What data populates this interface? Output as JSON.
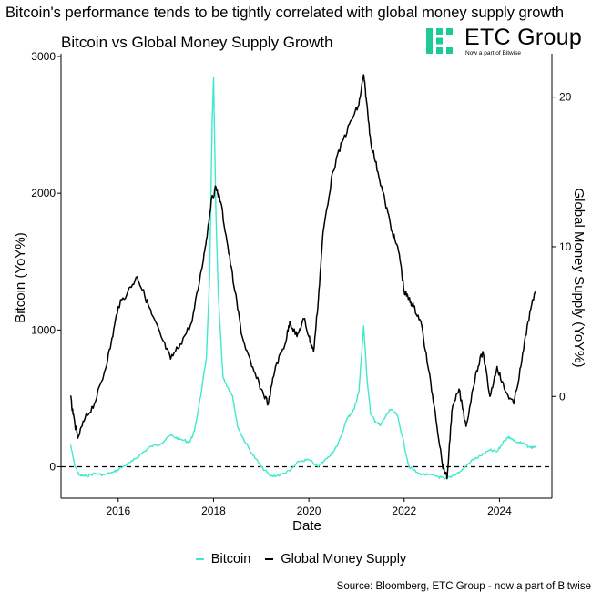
{
  "headline": "Bitcoin's performance tends to be tightly correlated with global money supply growth",
  "brand": {
    "name": "ETC Group",
    "tagline": "Now a part of Bitwise",
    "color": "#1ec99a"
  },
  "source": "Source: Bloomberg, ETC Group - now a part of Bitwise",
  "chart_data": {
    "type": "line",
    "title": "Bitcoin vs Global Money Supply Growth",
    "xlabel": "Date",
    "ylabel_left": "Bitcoin (YoY%)",
    "ylabel_right": "Global Money Supply (YoY%)",
    "x_ticks": [
      "2016",
      "2018",
      "2020",
      "2022",
      "2024"
    ],
    "x_range": [
      2014.8,
      2025.1
    ],
    "y_left_ticks": [
      0,
      1000,
      2000,
      3000
    ],
    "y_left_range": [
      -230,
      3020
    ],
    "y_right_ticks": [
      0,
      10,
      20
    ],
    "y_right_range": [
      -6.8,
      22.9
    ],
    "reference_line": {
      "axis": "left",
      "value": 0,
      "style": "dashed"
    },
    "grid": false,
    "legend_position": "bottom",
    "series": [
      {
        "name": "Bitcoin",
        "axis": "left",
        "color": "#40e8cc",
        "x": [
          2015.0,
          2015.08,
          2015.17,
          2015.3,
          2015.5,
          2015.7,
          2015.9,
          2016.1,
          2016.3,
          2016.5,
          2016.7,
          2016.9,
          2017.1,
          2017.3,
          2017.5,
          2017.6,
          2017.75,
          2017.85,
          2017.92,
          2017.97,
          2018.0,
          2018.05,
          2018.1,
          2018.2,
          2018.3,
          2018.4,
          2018.5,
          2018.6,
          2018.8,
          2019.0,
          2019.2,
          2019.4,
          2019.6,
          2019.8,
          2020.0,
          2020.2,
          2020.4,
          2020.6,
          2020.8,
          2020.95,
          2021.05,
          2021.15,
          2021.22,
          2021.3,
          2021.4,
          2021.5,
          2021.7,
          2021.85,
          2021.95,
          2022.1,
          2022.3,
          2022.5,
          2022.7,
          2022.85,
          2023.0,
          2023.2,
          2023.4,
          2023.6,
          2023.8,
          2023.95,
          2024.1,
          2024.2,
          2024.35,
          2024.5,
          2024.65,
          2024.75
        ],
        "values": [
          160,
          20,
          -60,
          -70,
          -50,
          -60,
          -40,
          0,
          40,
          100,
          150,
          170,
          230,
          200,
          180,
          260,
          560,
          800,
          1400,
          2500,
          2850,
          1850,
          1250,
          650,
          580,
          520,
          300,
          220,
          100,
          0,
          -70,
          -60,
          -30,
          40,
          50,
          0,
          70,
          150,
          350,
          420,
          550,
          1030,
          650,
          380,
          330,
          300,
          420,
          380,
          240,
          0,
          -50,
          -60,
          -70,
          -90,
          -70,
          -30,
          40,
          80,
          120,
          110,
          190,
          220,
          180,
          170,
          140,
          150
        ]
      },
      {
        "name": "Global Money Supply",
        "axis": "right",
        "color": "#000000",
        "x": [
          2015.0,
          2015.05,
          2015.15,
          2015.3,
          2015.5,
          2015.7,
          2015.85,
          2016.0,
          2016.2,
          2016.4,
          2016.55,
          2016.7,
          2016.9,
          2017.1,
          2017.3,
          2017.55,
          2017.75,
          2017.85,
          2017.95,
          2018.05,
          2018.15,
          2018.3,
          2018.45,
          2018.6,
          2018.8,
          2019.0,
          2019.15,
          2019.3,
          2019.5,
          2019.6,
          2019.75,
          2019.9,
          2020.0,
          2020.1,
          2020.2,
          2020.3,
          2020.5,
          2020.7,
          2020.9,
          2021.05,
          2021.15,
          2021.2,
          2021.3,
          2021.45,
          2021.6,
          2021.75,
          2021.9,
          2022.0,
          2022.1,
          2022.2,
          2022.35,
          2022.5,
          2022.65,
          2022.8,
          2022.9,
          2023.0,
          2023.15,
          2023.3,
          2023.5,
          2023.65,
          2023.8,
          2023.95,
          2024.1,
          2024.3,
          2024.45,
          2024.6,
          2024.75
        ],
        "values": [
          0,
          -1.2,
          -2.8,
          -1.5,
          -0.5,
          1.5,
          3.5,
          6.0,
          7.0,
          8.0,
          6.8,
          5.5,
          4.0,
          2.5,
          3.5,
          5.0,
          8.5,
          10.5,
          13.0,
          14.0,
          13.0,
          10.0,
          7.0,
          4.0,
          2.0,
          0.5,
          -0.5,
          2.0,
          3.5,
          5.0,
          4.0,
          5.2,
          4.0,
          3.0,
          6.5,
          11.0,
          15.0,
          17.0,
          18.5,
          19.5,
          21.5,
          20.0,
          17.0,
          15.0,
          13.0,
          11.0,
          9.5,
          7.0,
          6.5,
          6.0,
          5.0,
          2.0,
          -1.0,
          -4.5,
          -5.5,
          -1.0,
          0.5,
          -2.0,
          1.5,
          3.0,
          0.0,
          2.0,
          0.5,
          -0.5,
          2.0,
          5.0,
          7.0
        ]
      }
    ]
  }
}
